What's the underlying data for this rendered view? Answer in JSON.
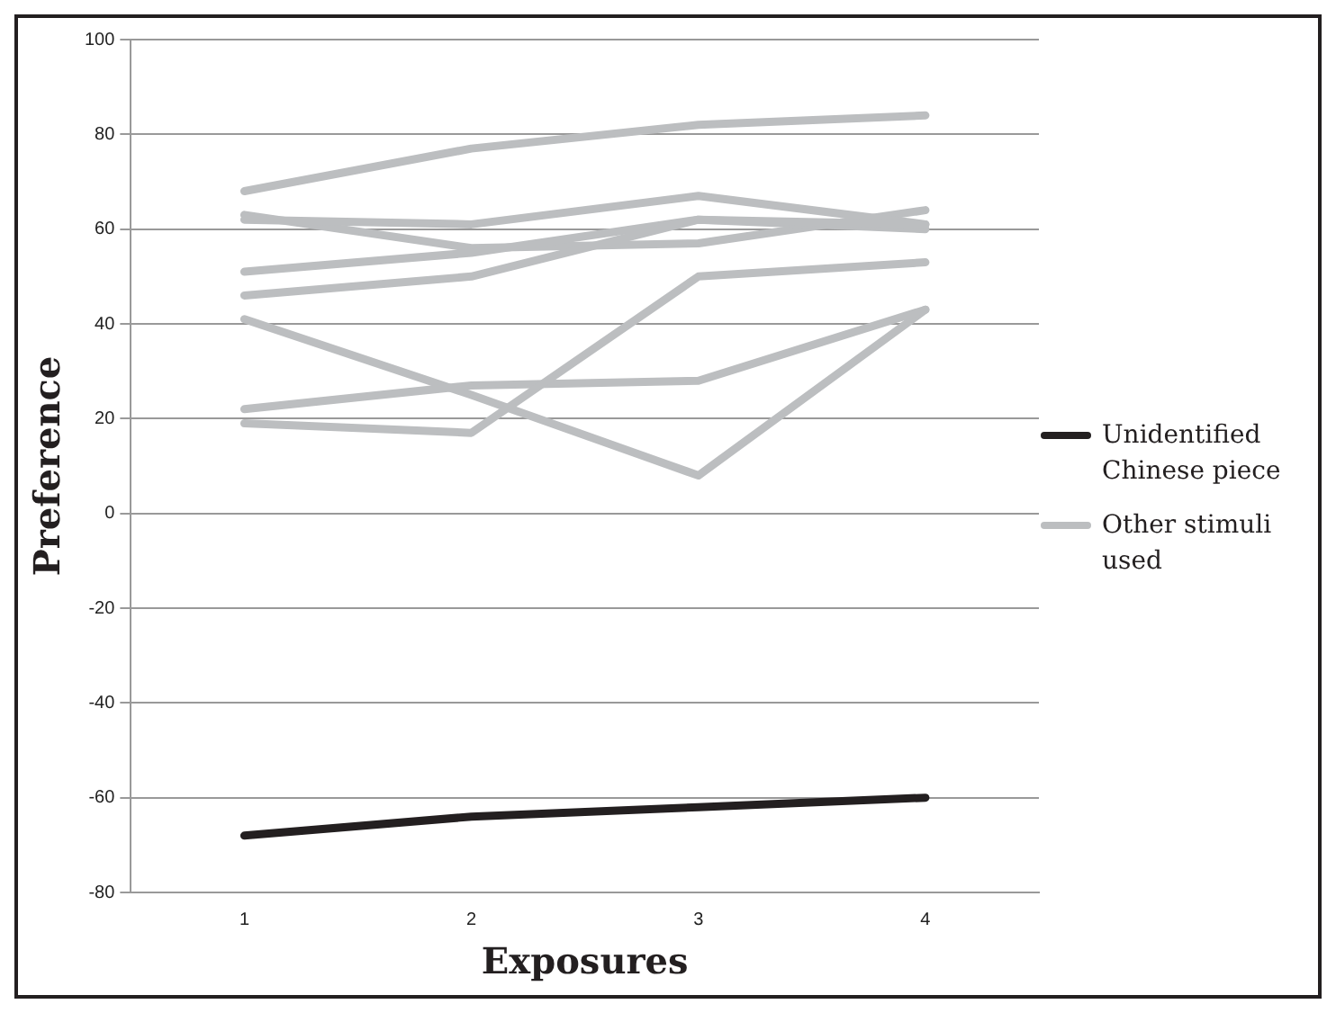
{
  "chart_data": {
    "type": "line",
    "xlabel": "Exposures",
    "ylabel": "Preference",
    "categories": [
      "1",
      "2",
      "3",
      "4"
    ],
    "ylim": [
      -80,
      100
    ],
    "yticks": [
      -80,
      -60,
      -40,
      -20,
      0,
      20,
      40,
      60,
      80,
      100
    ],
    "grid": "y",
    "legend": "right",
    "marker": "none",
    "line_style": "solid",
    "series": [
      {
        "name": "Unidentified Chinese piece",
        "color": "#231f20",
        "values": [
          -68,
          -64,
          -62,
          -60
        ]
      },
      {
        "name": "Other stimuli used",
        "color": "#bcbec0",
        "values": [
          68,
          77,
          82,
          84
        ]
      },
      {
        "color": "#bcbec0",
        "values": [
          63,
          56,
          57,
          64
        ]
      },
      {
        "color": "#bcbec0",
        "values": [
          62,
          61,
          67,
          61
        ]
      },
      {
        "color": "#bcbec0",
        "values": [
          51,
          55,
          62,
          60
        ]
      },
      {
        "color": "#bcbec0",
        "values": [
          46,
          50,
          62,
          61
        ]
      },
      {
        "color": "#bcbec0",
        "values": [
          41,
          25,
          8,
          43
        ]
      },
      {
        "color": "#bcbec0",
        "values": [
          22,
          27,
          28,
          43
        ]
      },
      {
        "color": "#bcbec0",
        "values": [
          19,
          17,
          50,
          53
        ]
      }
    ]
  }
}
